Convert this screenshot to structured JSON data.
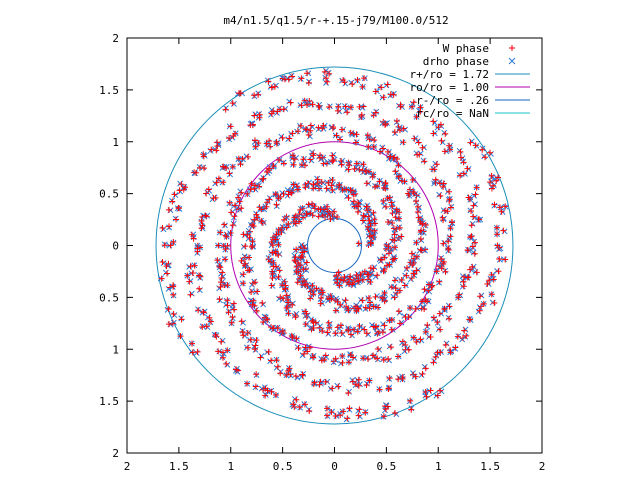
{
  "chart_data": {
    "type": "scatter",
    "title": "m4/n1.5/q1.5/r-+.15-j79/M100.0/512",
    "xlim": [
      -2,
      2
    ],
    "ylim": [
      -2,
      2
    ],
    "x_tick_labels": [
      "2",
      "1.5",
      "1",
      "0.5",
      "0",
      "0.5",
      "1",
      "1.5",
      "2"
    ],
    "y_tick_labels": [
      "2",
      "1.5",
      "1",
      "0.5",
      "0",
      "0.5",
      "1",
      "1.5",
      "2"
    ],
    "x_ticks": [
      -2,
      -1.5,
      -1,
      -0.5,
      0,
      0.5,
      1,
      1.5,
      2
    ],
    "y_ticks": [
      -2,
      -1.5,
      -1,
      -0.5,
      0,
      0.5,
      1,
      1.5,
      2
    ],
    "grid": false,
    "legend_position": "top-right",
    "series": [
      {
        "name": "W phase",
        "marker": "plus",
        "color": "#ff0000"
      },
      {
        "name": "drho phase",
        "marker": "cross",
        "color": "#2b7bd6"
      }
    ],
    "circles": [
      {
        "name": "r+/ro = 1.72",
        "radius": 1.72,
        "color": "#1a8fb8"
      },
      {
        "name": "ro/ro = 1.00",
        "radius": 1.0,
        "color": "#b000b0"
      },
      {
        "name": "r-/ro = .26",
        "radius": 0.26,
        "color": "#1565c0"
      },
      {
        "name": "rc/ro = NaN",
        "radius": null,
        "color": "#18c6c6"
      }
    ],
    "spiral_arms": [
      {
        "r_start": 0.3,
        "r_end": 1.72,
        "phase_deg": 0,
        "turns": 1.35
      },
      {
        "r_start": 0.3,
        "r_end": 1.72,
        "phase_deg": 90,
        "turns": 1.35
      },
      {
        "r_start": 0.3,
        "r_end": 1.72,
        "phase_deg": 180,
        "turns": 1.35
      },
      {
        "r_start": 0.3,
        "r_end": 1.72,
        "phase_deg": 270,
        "turns": 1.35
      }
    ]
  }
}
